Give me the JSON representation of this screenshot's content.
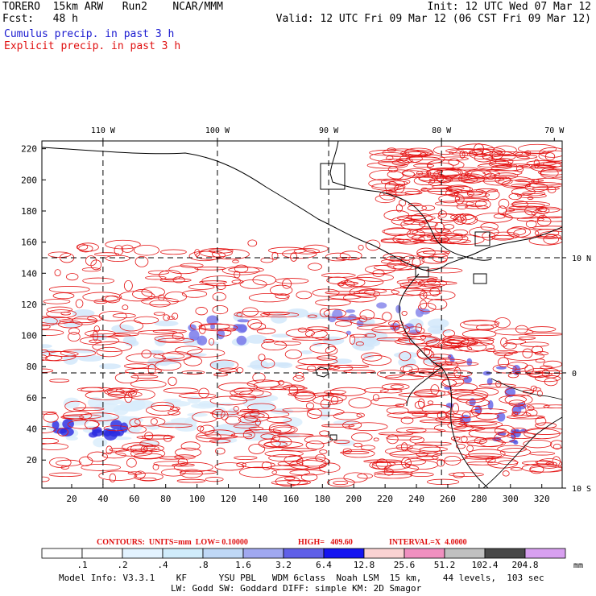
{
  "header": {
    "model": "TORERO  15km ARW   Run2    NCAR/MMM",
    "init": "Init: 12 UTC Wed 07 Mar 12",
    "fcst": "Fcst:   48 h",
    "valid": "Valid: 12 UTC Fri 09 Mar 12 (06 CST Fri 09 Mar 12)",
    "legend_cumulus": "Cumulus precip. in past 3 h",
    "legend_explicit": "Explicit precip. in past 3 h"
  },
  "contours": {
    "label": "CONTOURS:  UNITS=mm  LOW= 0.10000",
    "high": "HIGH=   409.60",
    "interval": "INTERVAL=X  4.0000"
  },
  "model_info": {
    "line1": "Model Info: V3.3.1    KF      YSU PBL   WDM 6class  Noah LSM  15 km,    44 levels,  103 sec",
    "line2": "LW: Godd SW: Goddard DIFF: simple KM: 2D Smagor"
  },
  "colorbar": {
    "unit": "mm",
    "labels": [
      ".1",
      ".2",
      ".4",
      ".8",
      "1.6",
      "3.2",
      "6.4",
      "12.8",
      "25.6",
      "51.2",
      "102.4",
      "204.8"
    ],
    "colors": [
      "#ffffff",
      "#ffffff",
      "#e3f3ff",
      "#d0ecfb",
      "#bfd8f6",
      "#a0a8f0",
      "#6060e8",
      "#1414f0",
      "#fad2d2",
      "#f090c0",
      "#c0c0c0",
      "#484848",
      "#d8a0f0"
    ]
  },
  "chart_data": {
    "type": "heatmap",
    "x_ticks": [
      20,
      40,
      60,
      80,
      100,
      120,
      140,
      160,
      180,
      200,
      220,
      240,
      260,
      280,
      300,
      320
    ],
    "y_ticks": [
      20,
      40,
      60,
      80,
      100,
      120,
      140,
      160,
      180,
      200,
      220
    ],
    "xlim": [
      1,
      333
    ],
    "ylim": [
      2,
      225
    ],
    "lon_labels": [
      {
        "label": "110 W",
        "x": 40
      },
      {
        "label": "100 W",
        "x": 113
      },
      {
        "label": "90 W",
        "x": 184
      },
      {
        "label": "80 W",
        "x": 256
      },
      {
        "label": "70 W",
        "x": 328
      }
    ],
    "lat_labels": [
      {
        "label": "10 N",
        "y": 150
      },
      {
        "label": "0",
        "y": 76
      },
      {
        "label": "10 S",
        "y": 2
      }
    ],
    "gridlines": "dashed lat/lon every 10 degrees"
  }
}
